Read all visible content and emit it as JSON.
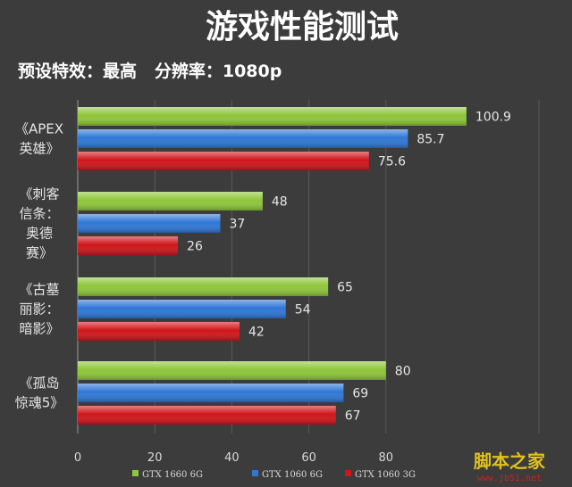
{
  "chart_data": {
    "type": "bar",
    "orientation": "horizontal",
    "title": "游戏性能测试",
    "subtitle": "预设特效：最高   分辨率：1080p",
    "categories": [
      "《APEX 英雄》",
      "《刺客信条：奥德赛》",
      "《古墓丽影：暗影》",
      "《孤岛惊魂5》"
    ],
    "category_lines": [
      [
        "《APEX",
        "英雄》"
      ],
      [
        "《刺客",
        "信条：",
        "奥德",
        "赛》"
      ],
      [
        "《古墓",
        "丽影：",
        "暗影》"
      ],
      [
        "《孤岛",
        "惊魂5》"
      ]
    ],
    "series": [
      {
        "name": "GTX 1660 6G",
        "color": "#8fc63a",
        "values": [
          100.9,
          48,
          65,
          80
        ]
      },
      {
        "name": "GTX 1060 6G",
        "color": "#2f77d6",
        "values": [
          85.7,
          37,
          54,
          69
        ]
      },
      {
        "name": "GTX 1060 3G",
        "color": "#d0151b",
        "values": [
          75.6,
          26,
          42,
          67
        ]
      }
    ],
    "xlim": [
      0,
      120
    ],
    "xticks": [
      0,
      20,
      40,
      60,
      80
    ],
    "grid": true,
    "legend": "bottom"
  },
  "watermark": {
    "logo": "脚本之家",
    "url": "www.jb51.net"
  }
}
